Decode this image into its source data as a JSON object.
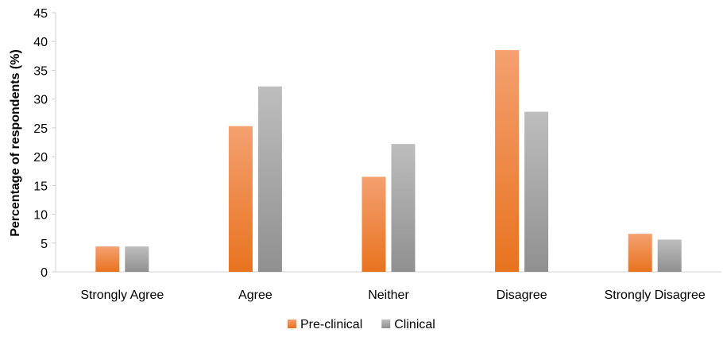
{
  "chart_data": {
    "type": "bar",
    "title": "",
    "xlabel": "",
    "ylabel": "Percentage of respondents (%)",
    "ylim": [
      0,
      45
    ],
    "yticks": [
      0,
      5,
      10,
      15,
      20,
      25,
      30,
      35,
      40,
      45
    ],
    "categories": [
      "Strongly Agree",
      "Agree",
      "Neither",
      "Disagree",
      "Strongly Disagree"
    ],
    "series": [
      {
        "name": "Pre-clinical",
        "values": [
          4.4,
          25.3,
          16.5,
          38.5,
          6.6
        ],
        "color": "#ED7D31"
      },
      {
        "name": "Clinical",
        "values": [
          4.4,
          32.2,
          22.2,
          27.8,
          5.6
        ],
        "color": "#A5A5A5"
      }
    ],
    "legend_position": "bottom",
    "grid": false
  }
}
